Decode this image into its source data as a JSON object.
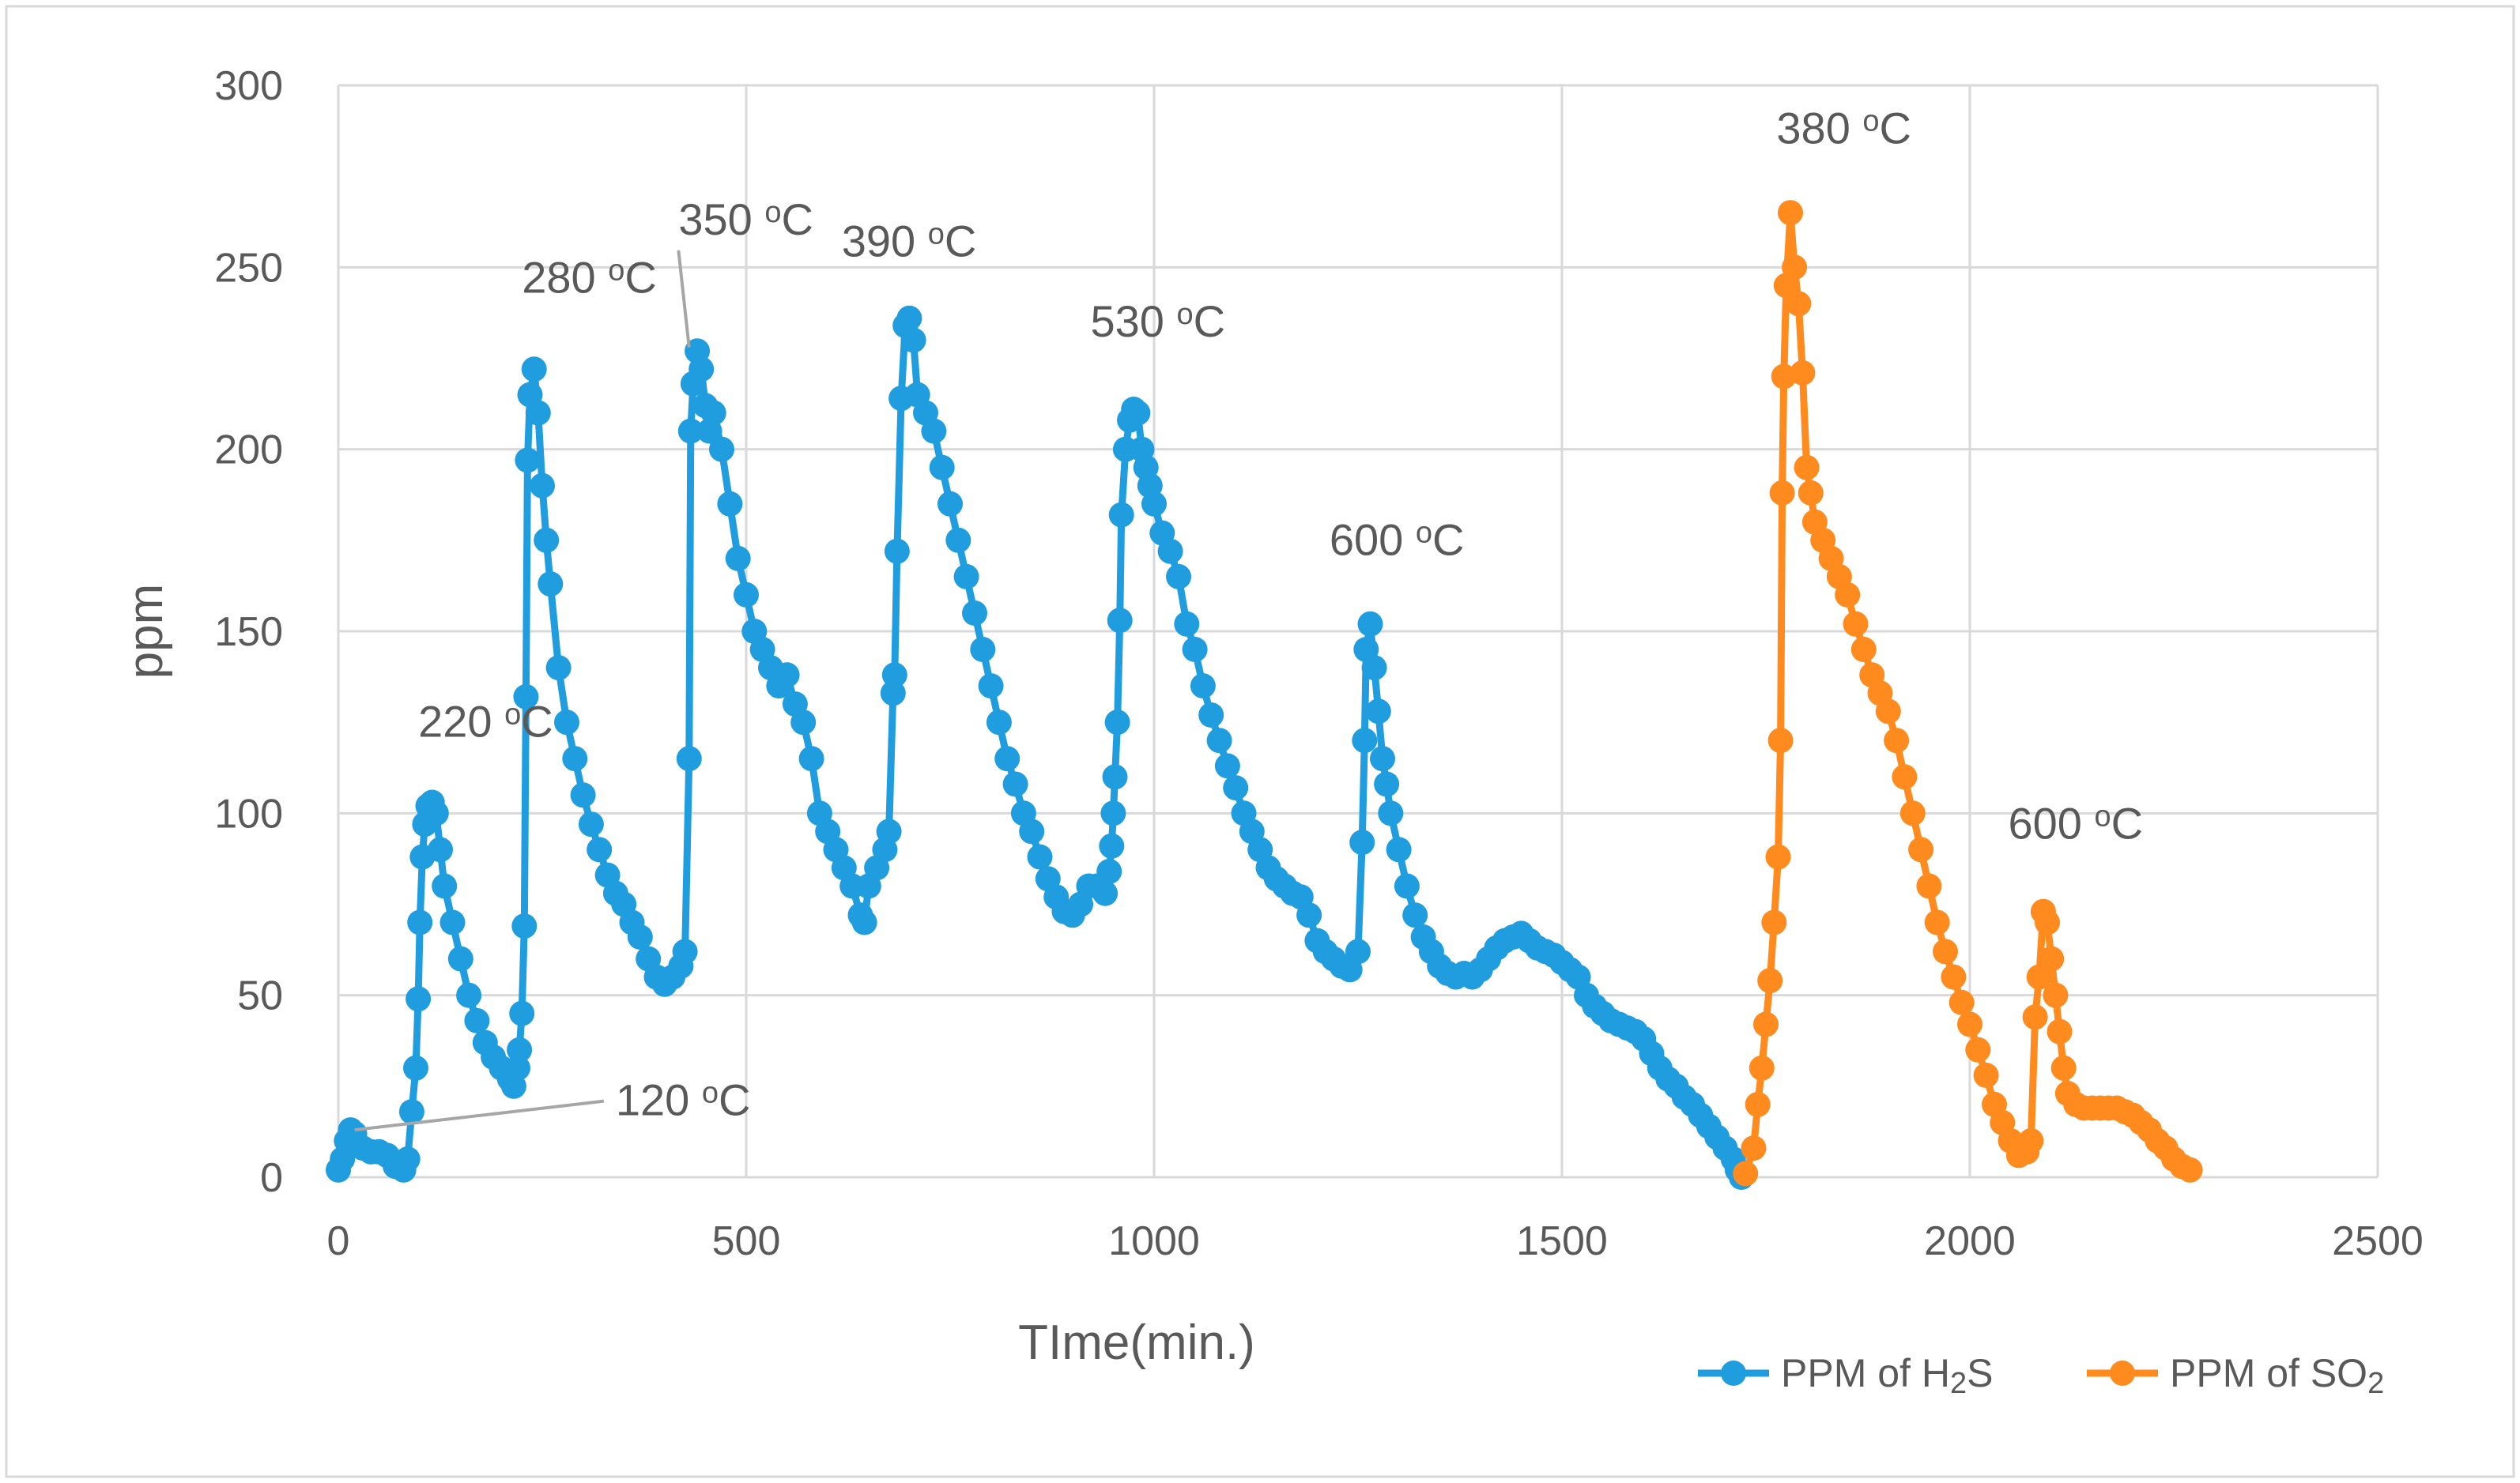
{
  "chart_data": {
    "type": "line",
    "title": "",
    "xlabel": "TIme(min.)",
    "ylabel": "ppm",
    "xlim": [
      0,
      2500
    ],
    "ylim": [
      0,
      300
    ],
    "x_ticks": [
      0,
      500,
      1000,
      1500,
      2000,
      2500
    ],
    "y_ticks": [
      0,
      50,
      100,
      150,
      200,
      250,
      300
    ],
    "grid": true,
    "legend_position": "bottom-right",
    "series": [
      {
        "name": "PPM of H2S",
        "legend_main": "PPM of H",
        "legend_sub": "2",
        "legend_tail": "S",
        "color": "#1f9ddf",
        "points": [
          [
            0,
            2
          ],
          [
            5,
            5
          ],
          [
            10,
            10
          ],
          [
            15,
            13
          ],
          [
            20,
            12
          ],
          [
            30,
            8
          ],
          [
            40,
            7
          ],
          [
            50,
            7
          ],
          [
            60,
            6
          ],
          [
            70,
            3
          ],
          [
            80,
            2
          ],
          [
            85,
            5
          ],
          [
            90,
            18
          ],
          [
            95,
            30
          ],
          [
            98,
            49
          ],
          [
            100,
            70
          ],
          [
            103,
            88
          ],
          [
            106,
            97
          ],
          [
            110,
            102
          ],
          [
            115,
            103
          ],
          [
            120,
            100
          ],
          [
            125,
            90
          ],
          [
            130,
            80
          ],
          [
            140,
            70
          ],
          [
            150,
            60
          ],
          [
            160,
            50
          ],
          [
            170,
            43
          ],
          [
            180,
            37
          ],
          [
            190,
            33
          ],
          [
            200,
            30
          ],
          [
            210,
            27
          ],
          [
            215,
            25
          ],
          [
            220,
            30
          ],
          [
            222,
            35
          ],
          [
            225,
            45
          ],
          [
            228,
            69
          ],
          [
            230,
            132
          ],
          [
            232,
            197
          ],
          [
            235,
            215
          ],
          [
            240,
            222
          ],
          [
            245,
            210
          ],
          [
            250,
            190
          ],
          [
            255,
            175
          ],
          [
            260,
            163
          ],
          [
            270,
            140
          ],
          [
            280,
            125
          ],
          [
            290,
            115
          ],
          [
            300,
            105
          ],
          [
            310,
            97
          ],
          [
            320,
            90
          ],
          [
            330,
            83
          ],
          [
            340,
            78
          ],
          [
            350,
            75
          ],
          [
            360,
            70
          ],
          [
            370,
            66
          ],
          [
            380,
            60
          ],
          [
            390,
            55
          ],
          [
            400,
            53
          ],
          [
            410,
            55
          ],
          [
            420,
            58
          ],
          [
            425,
            62
          ],
          [
            430,
            115
          ],
          [
            432,
            205
          ],
          [
            435,
            218
          ],
          [
            440,
            227
          ],
          [
            445,
            222
          ],
          [
            450,
            212
          ],
          [
            455,
            205
          ],
          [
            460,
            210
          ],
          [
            470,
            200
          ],
          [
            480,
            185
          ],
          [
            490,
            170
          ],
          [
            500,
            160
          ],
          [
            510,
            150
          ],
          [
            520,
            145
          ],
          [
            530,
            140
          ],
          [
            540,
            135
          ],
          [
            550,
            138
          ],
          [
            560,
            130
          ],
          [
            570,
            125
          ],
          [
            580,
            115
          ],
          [
            590,
            100
          ],
          [
            600,
            95
          ],
          [
            610,
            90
          ],
          [
            620,
            85
          ],
          [
            630,
            80
          ],
          [
            640,
            72
          ],
          [
            645,
            70
          ],
          [
            650,
            80
          ],
          [
            660,
            85
          ],
          [
            670,
            90
          ],
          [
            675,
            95
          ],
          [
            680,
            133
          ],
          [
            682,
            138
          ],
          [
            685,
            172
          ],
          [
            690,
            214
          ],
          [
            695,
            234
          ],
          [
            700,
            236
          ],
          [
            705,
            230
          ],
          [
            710,
            215
          ],
          [
            720,
            210
          ],
          [
            730,
            205
          ],
          [
            740,
            195
          ],
          [
            750,
            185
          ],
          [
            760,
            175
          ],
          [
            770,
            165
          ],
          [
            780,
            155
          ],
          [
            790,
            145
          ],
          [
            800,
            135
          ],
          [
            810,
            125
          ],
          [
            820,
            115
          ],
          [
            830,
            108
          ],
          [
            840,
            100
          ],
          [
            850,
            95
          ],
          [
            860,
            88
          ],
          [
            870,
            82
          ],
          [
            880,
            77
          ],
          [
            890,
            73
          ],
          [
            900,
            72
          ],
          [
            910,
            75
          ],
          [
            920,
            80
          ],
          [
            930,
            80
          ],
          [
            940,
            78
          ],
          [
            945,
            84
          ],
          [
            948,
            91
          ],
          [
            950,
            100
          ],
          [
            952,
            110
          ],
          [
            955,
            125
          ],
          [
            958,
            153
          ],
          [
            960,
            182
          ],
          [
            965,
            200
          ],
          [
            970,
            208
          ],
          [
            975,
            211
          ],
          [
            980,
            210
          ],
          [
            985,
            200
          ],
          [
            990,
            195
          ],
          [
            995,
            190
          ],
          [
            1000,
            185
          ],
          [
            1010,
            177
          ],
          [
            1020,
            172
          ],
          [
            1030,
            165
          ],
          [
            1040,
            152
          ],
          [
            1050,
            145
          ],
          [
            1060,
            135
          ],
          [
            1070,
            127
          ],
          [
            1080,
            120
          ],
          [
            1090,
            113
          ],
          [
            1100,
            107
          ],
          [
            1110,
            100
          ],
          [
            1120,
            95
          ],
          [
            1130,
            90
          ],
          [
            1140,
            85
          ],
          [
            1150,
            82
          ],
          [
            1160,
            80
          ],
          [
            1170,
            78
          ],
          [
            1180,
            77
          ],
          [
            1190,
            72
          ],
          [
            1200,
            65
          ],
          [
            1210,
            62
          ],
          [
            1220,
            60
          ],
          [
            1230,
            58
          ],
          [
            1240,
            57
          ],
          [
            1250,
            62
          ],
          [
            1255,
            92
          ],
          [
            1258,
            120
          ],
          [
            1260,
            145
          ],
          [
            1265,
            152
          ],
          [
            1270,
            140
          ],
          [
            1275,
            128
          ],
          [
            1280,
            115
          ],
          [
            1285,
            108
          ],
          [
            1290,
            100
          ],
          [
            1300,
            90
          ],
          [
            1310,
            80
          ],
          [
            1320,
            72
          ],
          [
            1330,
            66
          ],
          [
            1340,
            62
          ],
          [
            1350,
            58
          ],
          [
            1360,
            56
          ],
          [
            1370,
            55
          ],
          [
            1380,
            56
          ],
          [
            1390,
            55
          ],
          [
            1400,
            57
          ],
          [
            1410,
            60
          ],
          [
            1420,
            63
          ],
          [
            1430,
            65
          ],
          [
            1440,
            66
          ],
          [
            1450,
            67
          ],
          [
            1460,
            65
          ],
          [
            1470,
            63
          ],
          [
            1480,
            62
          ],
          [
            1490,
            61
          ],
          [
            1500,
            59
          ],
          [
            1510,
            57
          ],
          [
            1520,
            55
          ],
          [
            1530,
            50
          ],
          [
            1540,
            47
          ],
          [
            1550,
            45
          ],
          [
            1560,
            43
          ],
          [
            1570,
            42
          ],
          [
            1580,
            41
          ],
          [
            1590,
            40
          ],
          [
            1600,
            38
          ],
          [
            1610,
            34
          ],
          [
            1620,
            30
          ],
          [
            1630,
            27
          ],
          [
            1640,
            25
          ],
          [
            1650,
            22
          ],
          [
            1660,
            20
          ],
          [
            1670,
            17
          ],
          [
            1680,
            14
          ],
          [
            1690,
            11
          ],
          [
            1700,
            8
          ],
          [
            1710,
            5
          ],
          [
            1715,
            2
          ],
          [
            1720,
            0
          ]
        ]
      },
      {
        "name": "PPM of SO2",
        "legend_main": "PPM of SO",
        "legend_sub": "2",
        "legend_tail": "",
        "color": "#ff8a1e",
        "points": [
          [
            1725,
            1
          ],
          [
            1735,
            8
          ],
          [
            1740,
            20
          ],
          [
            1745,
            30
          ],
          [
            1750,
            42
          ],
          [
            1755,
            54
          ],
          [
            1760,
            70
          ],
          [
            1765,
            88
          ],
          [
            1768,
            120
          ],
          [
            1770,
            188
          ],
          [
            1772,
            220
          ],
          [
            1775,
            245
          ],
          [
            1780,
            265
          ],
          [
            1785,
            250
          ],
          [
            1790,
            240
          ],
          [
            1795,
            221
          ],
          [
            1800,
            195
          ],
          [
            1805,
            188
          ],
          [
            1810,
            180
          ],
          [
            1820,
            175
          ],
          [
            1830,
            170
          ],
          [
            1840,
            165
          ],
          [
            1850,
            160
          ],
          [
            1860,
            152
          ],
          [
            1870,
            145
          ],
          [
            1880,
            138
          ],
          [
            1890,
            133
          ],
          [
            1900,
            128
          ],
          [
            1910,
            120
          ],
          [
            1920,
            110
          ],
          [
            1930,
            100
          ],
          [
            1940,
            90
          ],
          [
            1950,
            80
          ],
          [
            1960,
            70
          ],
          [
            1970,
            62
          ],
          [
            1980,
            55
          ],
          [
            1990,
            48
          ],
          [
            2000,
            42
          ],
          [
            2010,
            35
          ],
          [
            2020,
            28
          ],
          [
            2030,
            20
          ],
          [
            2040,
            15
          ],
          [
            2050,
            10
          ],
          [
            2060,
            6
          ],
          [
            2070,
            7
          ],
          [
            2075,
            10
          ],
          [
            2080,
            44
          ],
          [
            2085,
            55
          ],
          [
            2090,
            73
          ],
          [
            2095,
            70
          ],
          [
            2100,
            60
          ],
          [
            2105,
            50
          ],
          [
            2110,
            40
          ],
          [
            2115,
            30
          ],
          [
            2120,
            23
          ],
          [
            2130,
            20
          ],
          [
            2140,
            19
          ],
          [
            2150,
            19
          ],
          [
            2160,
            19
          ],
          [
            2170,
            19
          ],
          [
            2180,
            19
          ],
          [
            2190,
            18
          ],
          [
            2200,
            17
          ],
          [
            2210,
            15
          ],
          [
            2220,
            13
          ],
          [
            2230,
            10
          ],
          [
            2240,
            8
          ],
          [
            2250,
            5
          ],
          [
            2260,
            3
          ],
          [
            2270,
            2
          ]
        ]
      }
    ],
    "annotations": [
      {
        "text": "120 ",
        "sup": "o",
        "tail": "C",
        "x": 340,
        "y": 17,
        "leader_to": [
          20,
          13
        ]
      },
      {
        "text": "220 ",
        "sup": "o",
        "tail": "C",
        "x": 98,
        "y": 121
      },
      {
        "text": "280 ",
        "sup": "o",
        "tail": "C",
        "x": 225,
        "y": 243
      },
      {
        "text": "350 ",
        "sup": "o",
        "tail": "C",
        "x": 417,
        "y": 259,
        "leader_to": [
          430,
          228
        ]
      },
      {
        "text": "390 ",
        "sup": "o",
        "tail": "C",
        "x": 617,
        "y": 253
      },
      {
        "text": "530 ",
        "sup": "o",
        "tail": "C",
        "x": 922,
        "y": 231
      },
      {
        "text": "600 ",
        "sup": "o",
        "tail": "C",
        "x": 1215,
        "y": 171
      },
      {
        "text": "380 ",
        "sup": "o",
        "tail": "C",
        "x": 1763,
        "y": 284
      },
      {
        "text": "600 ",
        "sup": "o",
        "tail": "C",
        "x": 2047,
        "y": 93
      }
    ]
  }
}
